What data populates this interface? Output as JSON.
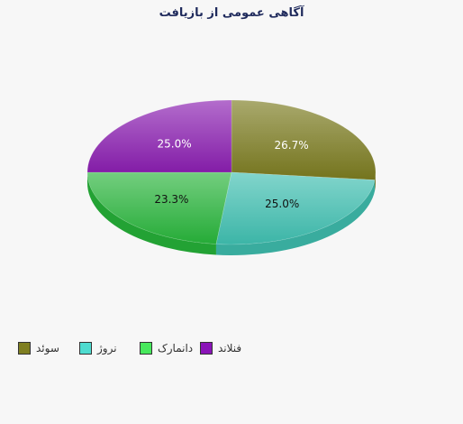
{
  "chart_data": {
    "type": "pie",
    "title": "آگاهی عمومی از بازیافت",
    "categories": [
      "سوئد",
      "نروژ",
      "دانمارک",
      "فنلاند"
    ],
    "values": [
      26.7,
      25.0,
      23.3,
      25.0
    ],
    "value_labels": [
      "26.7%",
      "25.0%",
      "23.3%",
      "25.0%"
    ],
    "colors": [
      "#7a7a1e",
      "#3fbfb0",
      "#27b43a",
      "#8a1fb0"
    ],
    "legend": {
      "position": "bottom-left",
      "items": [
        {
          "label": "سوئد",
          "color": "#7f7f21"
        },
        {
          "label": "نروژ",
          "color": "#4fdcd0"
        },
        {
          "label": "دانمارک",
          "color": "#47e85c"
        },
        {
          "label": "فنلاند",
          "color": "#8a14b8"
        }
      ]
    }
  }
}
